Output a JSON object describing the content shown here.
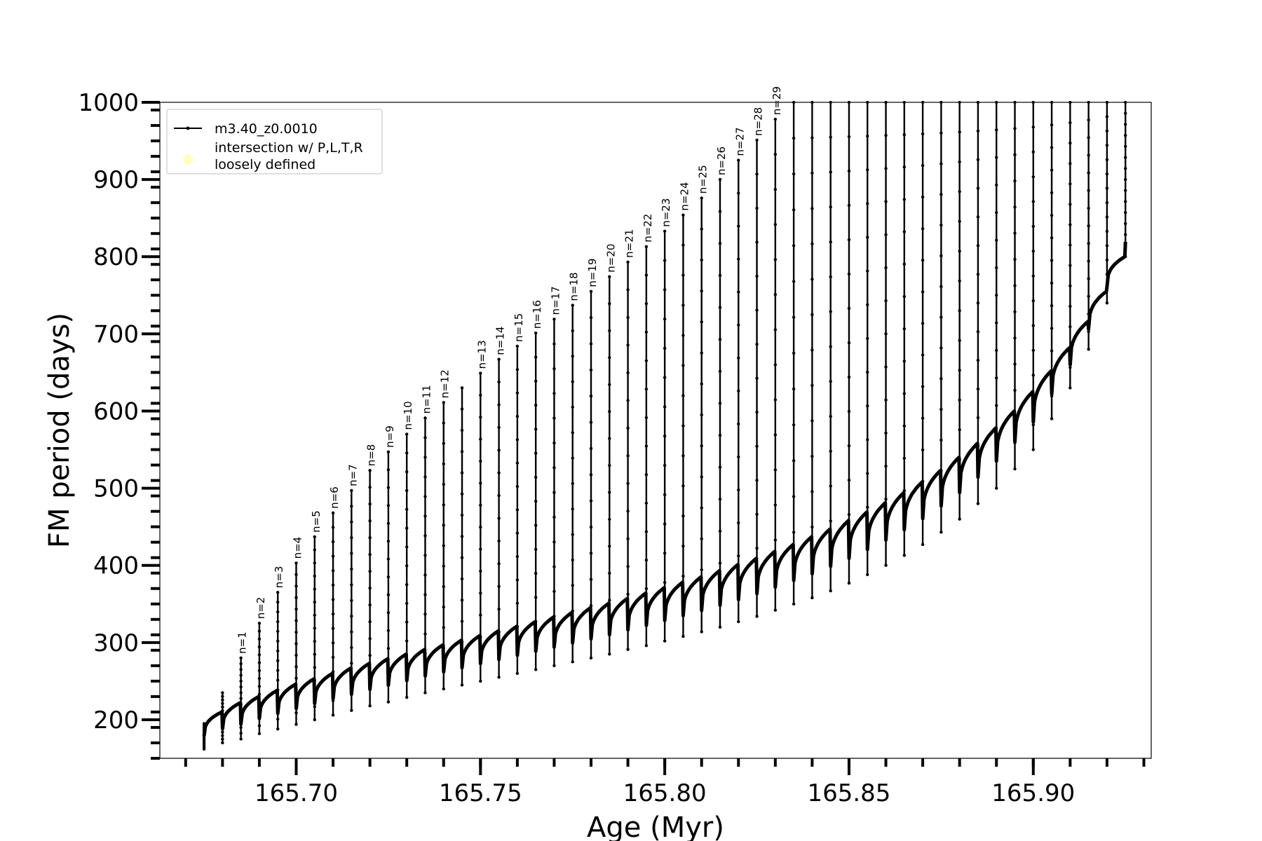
{
  "chart_data": {
    "type": "line",
    "xlabel": "Age (Myr)",
    "ylabel": "FM period (days)",
    "xlim": [
      165.663,
      165.932
    ],
    "ylim": [
      150,
      1000
    ],
    "x_ticks": [
      165.7,
      165.75,
      165.8,
      165.85,
      165.9
    ],
    "x_tick_labels": [
      "165.70",
      "165.75",
      "165.80",
      "165.85",
      "165.90"
    ],
    "y_ticks": [
      200,
      300,
      400,
      500,
      600,
      700,
      800,
      900,
      1000
    ],
    "y_tick_labels": [
      "200",
      "300",
      "400",
      "500",
      "600",
      "700",
      "800",
      "900",
      "1000"
    ],
    "x_minor_step": 0.01,
    "y_minor_step": 20,
    "legend": {
      "position": "upper-left",
      "entries": [
        {
          "label": "m3.40_z0.0010",
          "marker": "line-with-dots",
          "color": "#000000"
        },
        {
          "label": "intersection w/ P,L,T,R\nloosely defined",
          "marker": "circle",
          "color": "#ffffc0"
        }
      ]
    },
    "series": [
      {
        "name": "m3.40_z0.0010",
        "color": "#000000",
        "pulses": [
          {
            "x": 165.675,
            "top": 195,
            "bottom": 162,
            "baseline": 210,
            "label": ""
          },
          {
            "x": 165.68,
            "top": 235,
            "bottom": 170,
            "baseline": 222,
            "label": ""
          },
          {
            "x": 165.685,
            "top": 280,
            "bottom": 175,
            "baseline": 230,
            "label": "n=1"
          },
          {
            "x": 165.69,
            "top": 325,
            "bottom": 182,
            "baseline": 238,
            "label": "n=2"
          },
          {
            "x": 165.695,
            "top": 365,
            "bottom": 188,
            "baseline": 246,
            "label": "n=3"
          },
          {
            "x": 165.7,
            "top": 403,
            "bottom": 194,
            "baseline": 253,
            "label": "n=4"
          },
          {
            "x": 165.705,
            "top": 437,
            "bottom": 200,
            "baseline": 260,
            "label": "n=5"
          },
          {
            "x": 165.71,
            "top": 468,
            "bottom": 206,
            "baseline": 267,
            "label": "n=6"
          },
          {
            "x": 165.715,
            "top": 497,
            "bottom": 212,
            "baseline": 273,
            "label": "n=7"
          },
          {
            "x": 165.72,
            "top": 523,
            "bottom": 218,
            "baseline": 279,
            "label": "n=8"
          },
          {
            "x": 165.725,
            "top": 547,
            "bottom": 223,
            "baseline": 285,
            "label": "n=9"
          },
          {
            "x": 165.73,
            "top": 570,
            "bottom": 229,
            "baseline": 291,
            "label": "n=10"
          },
          {
            "x": 165.735,
            "top": 591,
            "bottom": 235,
            "baseline": 297,
            "label": "n=11"
          },
          {
            "x": 165.74,
            "top": 611,
            "bottom": 240,
            "baseline": 303,
            "label": "n=12"
          },
          {
            "x": 165.745,
            "top": 630,
            "bottom": 245,
            "baseline": 309,
            "label": ""
          },
          {
            "x": 165.75,
            "top": 649,
            "bottom": 250,
            "baseline": 315,
            "label": "n=13"
          },
          {
            "x": 165.755,
            "top": 667,
            "bottom": 255,
            "baseline": 321,
            "label": "n=14"
          },
          {
            "x": 165.76,
            "top": 684,
            "bottom": 260,
            "baseline": 327,
            "label": "n=15"
          },
          {
            "x": 165.765,
            "top": 701,
            "bottom": 265,
            "baseline": 333,
            "label": "n=16"
          },
          {
            "x": 165.77,
            "top": 719,
            "bottom": 270,
            "baseline": 339,
            "label": "n=17"
          },
          {
            "x": 165.775,
            "top": 737,
            "bottom": 275,
            "baseline": 345,
            "label": "n=18"
          },
          {
            "x": 165.78,
            "top": 755,
            "bottom": 280,
            "baseline": 351,
            "label": "n=19"
          },
          {
            "x": 165.785,
            "top": 774,
            "bottom": 285,
            "baseline": 357,
            "label": "n=20"
          },
          {
            "x": 165.79,
            "top": 793,
            "bottom": 291,
            "baseline": 364,
            "label": "n=21"
          },
          {
            "x": 165.795,
            "top": 813,
            "bottom": 296,
            "baseline": 371,
            "label": "n=22"
          },
          {
            "x": 165.8,
            "top": 833,
            "bottom": 302,
            "baseline": 378,
            "label": "n=23"
          },
          {
            "x": 165.805,
            "top": 854,
            "bottom": 308,
            "baseline": 385,
            "label": "n=24"
          },
          {
            "x": 165.81,
            "top": 876,
            "bottom": 314,
            "baseline": 393,
            "label": "n=25"
          },
          {
            "x": 165.815,
            "top": 900,
            "bottom": 320,
            "baseline": 401,
            "label": "n=26"
          },
          {
            "x": 165.82,
            "top": 925,
            "bottom": 327,
            "baseline": 409,
            "label": "n=27"
          },
          {
            "x": 165.825,
            "top": 951,
            "bottom": 334,
            "baseline": 418,
            "label": "n=28"
          },
          {
            "x": 165.83,
            "top": 978,
            "bottom": 342,
            "baseline": 427,
            "label": "n=29"
          },
          {
            "x": 165.835,
            "top": 1000,
            "bottom": 350,
            "baseline": 437,
            "label": ""
          },
          {
            "x": 165.84,
            "top": 1000,
            "bottom": 358,
            "baseline": 447,
            "label": ""
          },
          {
            "x": 165.845,
            "top": 1000,
            "bottom": 367,
            "baseline": 458,
            "label": ""
          },
          {
            "x": 165.85,
            "top": 1000,
            "bottom": 377,
            "baseline": 469,
            "label": ""
          },
          {
            "x": 165.855,
            "top": 1000,
            "bottom": 388,
            "baseline": 481,
            "label": ""
          },
          {
            "x": 165.86,
            "top": 1000,
            "bottom": 400,
            "baseline": 494,
            "label": ""
          },
          {
            "x": 165.865,
            "top": 1000,
            "bottom": 413,
            "baseline": 508,
            "label": ""
          },
          {
            "x": 165.87,
            "top": 1000,
            "bottom": 427,
            "baseline": 523,
            "label": ""
          },
          {
            "x": 165.875,
            "top": 1000,
            "bottom": 443,
            "baseline": 540,
            "label": ""
          },
          {
            "x": 165.88,
            "top": 1000,
            "bottom": 460,
            "baseline": 558,
            "label": ""
          },
          {
            "x": 165.885,
            "top": 1000,
            "bottom": 480,
            "baseline": 578,
            "label": ""
          },
          {
            "x": 165.89,
            "top": 1000,
            "bottom": 500,
            "baseline": 600,
            "label": ""
          },
          {
            "x": 165.895,
            "top": 1000,
            "bottom": 525,
            "baseline": 625,
            "label": ""
          },
          {
            "x": 165.9,
            "top": 1000,
            "bottom": 550,
            "baseline": 652,
            "label": ""
          },
          {
            "x": 165.905,
            "top": 1000,
            "bottom": 590,
            "baseline": 682,
            "label": ""
          },
          {
            "x": 165.91,
            "top": 1000,
            "bottom": 630,
            "baseline": 716,
            "label": ""
          },
          {
            "x": 165.915,
            "top": 1000,
            "bottom": 680,
            "baseline": 755,
            "label": ""
          },
          {
            "x": 165.92,
            "top": 1000,
            "bottom": 740,
            "baseline": 800,
            "label": ""
          },
          {
            "x": 165.925,
            "top": 1000,
            "bottom": 800,
            "baseline": 855,
            "label": ""
          }
        ]
      }
    ]
  }
}
